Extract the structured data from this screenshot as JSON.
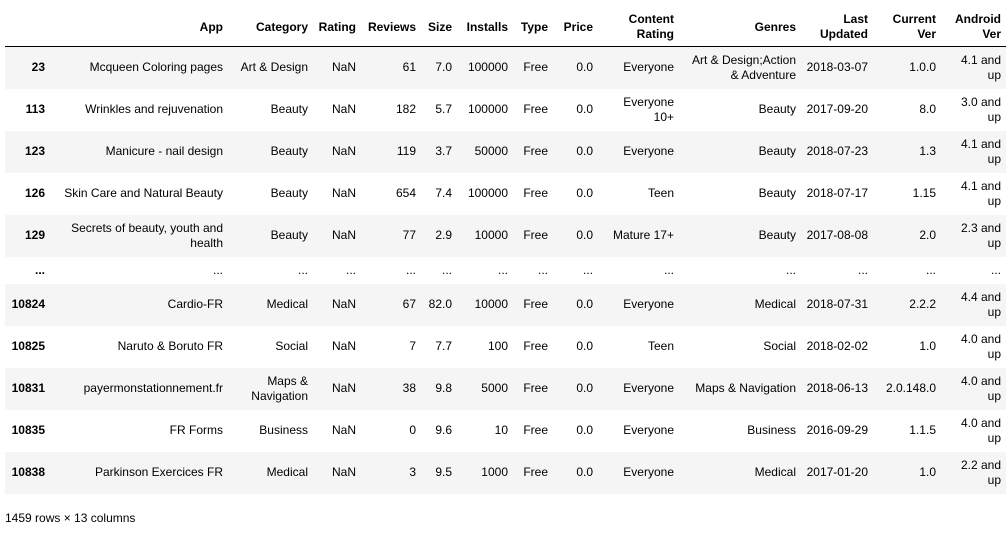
{
  "columns": [
    "",
    "App",
    "Category",
    "Rating",
    "Reviews",
    "Size",
    "Installs",
    "Type",
    "Price",
    "Content Rating",
    "Genres",
    "Last Updated",
    "Current Ver",
    "Android Ver"
  ],
  "rows": [
    [
      "23",
      "Mcqueen Coloring pages",
      "Art & Design",
      "NaN",
      "61",
      "7.0",
      "100000",
      "Free",
      "0.0",
      "Everyone",
      "Art & Design;Action & Adventure",
      "2018-03-07",
      "1.0.0",
      "4.1 and up"
    ],
    [
      "113",
      "Wrinkles and rejuvenation",
      "Beauty",
      "NaN",
      "182",
      "5.7",
      "100000",
      "Free",
      "0.0",
      "Everyone 10+",
      "Beauty",
      "2017-09-20",
      "8.0",
      "3.0 and up"
    ],
    [
      "123",
      "Manicure - nail design",
      "Beauty",
      "NaN",
      "119",
      "3.7",
      "50000",
      "Free",
      "0.0",
      "Everyone",
      "Beauty",
      "2018-07-23",
      "1.3",
      "4.1 and up"
    ],
    [
      "126",
      "Skin Care and Natural Beauty",
      "Beauty",
      "NaN",
      "654",
      "7.4",
      "100000",
      "Free",
      "0.0",
      "Teen",
      "Beauty",
      "2018-07-17",
      "1.15",
      "4.1 and up"
    ],
    [
      "129",
      "Secrets of beauty, youth and health",
      "Beauty",
      "NaN",
      "77",
      "2.9",
      "10000",
      "Free",
      "0.0",
      "Mature 17+",
      "Beauty",
      "2017-08-08",
      "2.0",
      "2.3 and up"
    ],
    [
      "...",
      "...",
      "...",
      "...",
      "...",
      "...",
      "...",
      "...",
      "...",
      "...",
      "...",
      "...",
      "...",
      "..."
    ],
    [
      "10824",
      "Cardio-FR",
      "Medical",
      "NaN",
      "67",
      "82.0",
      "10000",
      "Free",
      "0.0",
      "Everyone",
      "Medical",
      "2018-07-31",
      "2.2.2",
      "4.4 and up"
    ],
    [
      "10825",
      "Naruto & Boruto FR",
      "Social",
      "NaN",
      "7",
      "7.7",
      "100",
      "Free",
      "0.0",
      "Teen",
      "Social",
      "2018-02-02",
      "1.0",
      "4.0 and up"
    ],
    [
      "10831",
      "payermonstationnement.fr",
      "Maps & Navigation",
      "NaN",
      "38",
      "9.8",
      "5000",
      "Free",
      "0.0",
      "Everyone",
      "Maps & Navigation",
      "2018-06-13",
      "2.0.148.0",
      "4.0 and up"
    ],
    [
      "10835",
      "FR Forms",
      "Business",
      "NaN",
      "0",
      "9.6",
      "10",
      "Free",
      "0.0",
      "Everyone",
      "Business",
      "2016-09-29",
      "1.1.5",
      "4.0 and up"
    ],
    [
      "10838",
      "Parkinson Exercices FR",
      "Medical",
      "NaN",
      "3",
      "9.5",
      "1000",
      "Free",
      "0.0",
      "Everyone",
      "Medical",
      "2017-01-20",
      "1.0",
      "2.2 and up"
    ]
  ],
  "footer": "1459 rows × 13 columns"
}
